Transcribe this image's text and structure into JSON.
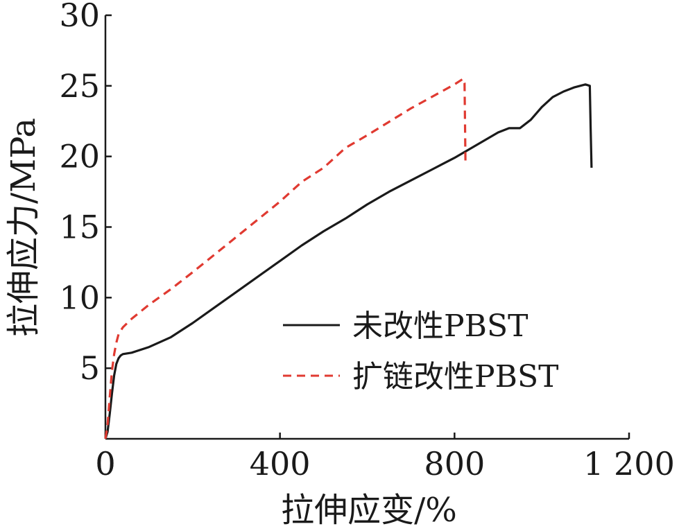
{
  "chart_data": {
    "type": "line",
    "xlabel": "拉伸应变/%",
    "ylabel": "拉伸应力/MPa",
    "xlim": [
      0,
      1200
    ],
    "ylim": [
      0,
      30
    ],
    "xticks": [
      0,
      400,
      800,
      1200
    ],
    "xtick_labels": [
      "0",
      "400",
      "800",
      "1 200"
    ],
    "yticks": [
      5,
      10,
      15,
      20,
      25,
      30
    ],
    "ytick_labels": [
      "5",
      "10",
      "15",
      "20",
      "25",
      "30"
    ],
    "grid": false,
    "legend_position": "center-right",
    "series": [
      {
        "name": "未改性PBST",
        "color": "#1a1a1a",
        "dash": "solid",
        "x": [
          0,
          5,
          10,
          15,
          20,
          25,
          30,
          35,
          40,
          60,
          100,
          150,
          200,
          250,
          300,
          350,
          400,
          450,
          500,
          550,
          600,
          650,
          700,
          750,
          800,
          850,
          900,
          925,
          950,
          975,
          1000,
          1025,
          1050,
          1075,
          1100,
          1110,
          1112,
          1114
        ],
        "y": [
          0,
          0.5,
          1.8,
          3.2,
          4.5,
          5.3,
          5.7,
          5.9,
          6.0,
          6.1,
          6.5,
          7.2,
          8.2,
          9.3,
          10.4,
          11.5,
          12.6,
          13.7,
          14.7,
          15.6,
          16.6,
          17.5,
          18.3,
          19.1,
          19.9,
          20.8,
          21.7,
          22.0,
          22.0,
          22.6,
          23.5,
          24.2,
          24.6,
          24.9,
          25.1,
          25.0,
          22.0,
          19.2
        ]
      },
      {
        "name": "扩链改性PBST",
        "color": "#e03a31",
        "dash": "dashed",
        "x": [
          0,
          5,
          10,
          15,
          20,
          25,
          30,
          40,
          60,
          100,
          150,
          200,
          300,
          400,
          450,
          500,
          550,
          600,
          700,
          800,
          820,
          823,
          825
        ],
        "y": [
          0,
          1.0,
          3.0,
          4.8,
          6.0,
          6.8,
          7.4,
          7.9,
          8.5,
          9.5,
          10.6,
          11.8,
          14.3,
          16.8,
          18.2,
          19.2,
          20.6,
          21.5,
          23.4,
          25.1,
          25.5,
          25.2,
          19.7
        ]
      }
    ]
  }
}
